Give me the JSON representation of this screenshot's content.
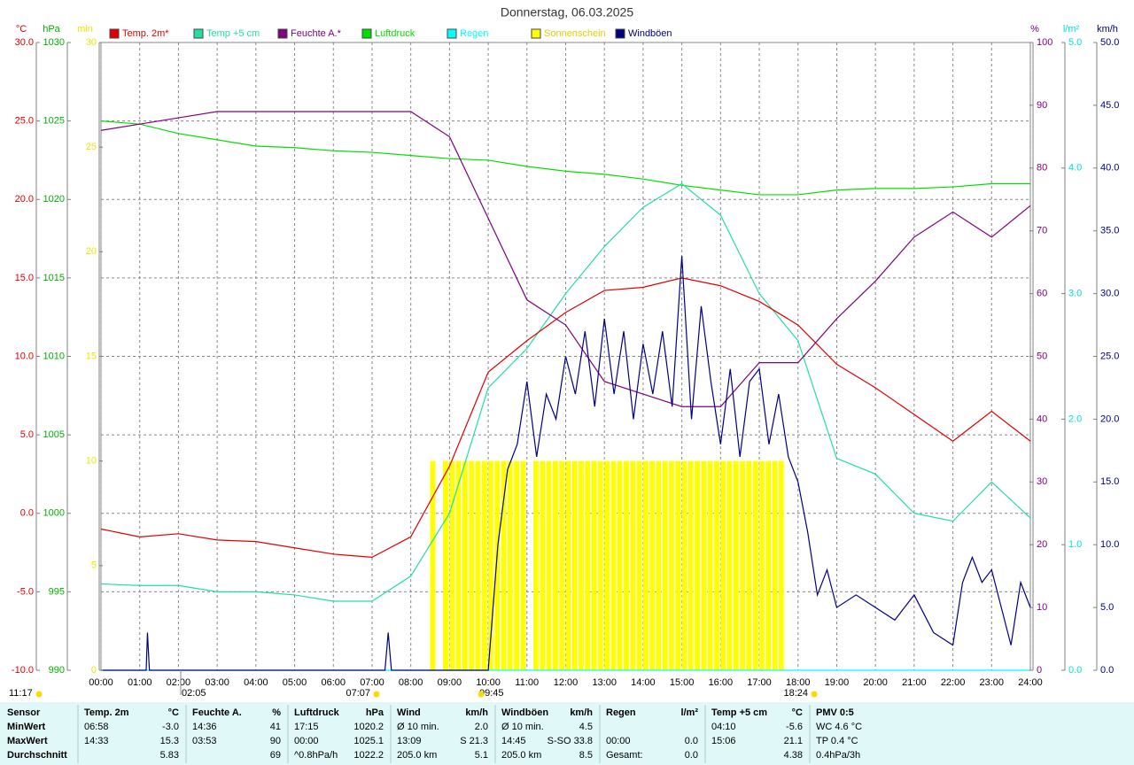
{
  "chart_data": {
    "type": "line",
    "title": "Donnerstag, 06.03.2025",
    "x": [
      "00:00",
      "01:00",
      "02:00",
      "03:00",
      "04:00",
      "05:00",
      "06:00",
      "07:00",
      "08:00",
      "09:00",
      "10:00",
      "11:00",
      "12:00",
      "13:00",
      "14:00",
      "15:00",
      "16:00",
      "17:00",
      "18:00",
      "19:00",
      "20:00",
      "21:00",
      "22:00",
      "23:00",
      "24:00"
    ],
    "axes": [
      {
        "id": "temp",
        "unit": "°C",
        "color": "#e00000",
        "ylim": [
          -10,
          30
        ],
        "yticks": [
          {
            "value": -10,
            "label": "-10.0"
          },
          {
            "value": -5,
            "label": "-5.0"
          },
          {
            "value": 0,
            "label": "0.0"
          },
          {
            "value": 5,
            "label": "5.0"
          },
          {
            "value": 10,
            "label": "10.0"
          },
          {
            "value": 15,
            "label": "15.0"
          },
          {
            "value": 20,
            "label": "20.0"
          },
          {
            "value": 25,
            "label": "25.0"
          },
          {
            "value": 30,
            "label": "30.0"
          }
        ],
        "grid": true
      },
      {
        "id": "hpa",
        "unit": "hPa",
        "color": "#00b000",
        "ylim": [
          990,
          1030
        ],
        "yticks": [
          990,
          995,
          1000,
          1005,
          1010,
          1015,
          1020,
          1025,
          1030
        ]
      },
      {
        "id": "min",
        "unit": "min",
        "color": "#e8e800",
        "ylim": [
          0,
          30
        ],
        "yticks": [
          0,
          5,
          10,
          15,
          20,
          25,
          30
        ]
      },
      {
        "id": "hum",
        "unit": "%",
        "color": "#800080",
        "ylim": [
          0,
          100
        ],
        "yticks": [
          0,
          10,
          20,
          30,
          40,
          50,
          60,
          70,
          80,
          90,
          100
        ]
      },
      {
        "id": "rain",
        "unit": "l/m²",
        "color": "#00e0e0",
        "ylim": [
          0,
          5
        ],
        "yticks": [
          {
            "value": 0,
            "label": "0.0"
          },
          {
            "value": 1,
            "label": "1.0"
          },
          {
            "value": 2,
            "label": "2.0"
          },
          {
            "value": 3,
            "label": "3.0"
          },
          {
            "value": 4,
            "label": "4.0"
          },
          {
            "value": 5,
            "label": "5.0"
          }
        ]
      },
      {
        "id": "kmh",
        "unit": "km/h",
        "color": "#000080",
        "ylim": [
          0,
          50
        ],
        "yticks": [
          {
            "value": 0,
            "label": "0.0"
          },
          {
            "value": 5,
            "label": "5.0"
          },
          {
            "value": 10,
            "label": "10.0"
          },
          {
            "value": 15,
            "label": "15.0"
          },
          {
            "value": 20,
            "label": "20.0"
          },
          {
            "value": 25,
            "label": "25.0"
          },
          {
            "value": 30,
            "label": "30.0"
          },
          {
            "value": 35,
            "label": "35.0"
          },
          {
            "value": 40,
            "label": "40.0"
          },
          {
            "value": 45,
            "label": "45.0"
          },
          {
            "value": 50,
            "label": "50.0"
          }
        ]
      }
    ],
    "series": [
      {
        "name": "Temp. 2m*",
        "color": "#e00000",
        "axis": "temp",
        "values": [
          -1.0,
          -1.5,
          -1.3,
          -1.7,
          -1.8,
          -2.2,
          -2.6,
          -2.8,
          -1.5,
          3.0,
          9.0,
          11.0,
          12.8,
          14.2,
          14.4,
          15.0,
          14.5,
          13.5,
          12.0,
          9.5,
          8.0,
          6.3,
          4.6,
          6.5,
          4.6
        ]
      },
      {
        "name": "Temp +5 cm",
        "color": "#20e0a0",
        "axis": "temp",
        "values": [
          -4.5,
          -4.6,
          -4.6,
          -5.0,
          -5.0,
          -5.2,
          -5.6,
          -5.6,
          -4.0,
          0.0,
          8.0,
          10.5,
          14.0,
          17.0,
          19.5,
          21.0,
          19.0,
          14.0,
          11.0,
          3.5,
          2.5,
          0.0,
          -0.5,
          2.0,
          -0.3
        ]
      },
      {
        "name": "Feuchte A.*",
        "color": "#800080",
        "axis": "hum",
        "values": [
          86,
          87,
          88,
          89,
          89,
          89,
          89,
          89,
          89,
          85,
          72,
          59,
          55,
          46,
          44,
          42,
          42,
          49,
          49,
          56,
          62,
          69,
          73,
          69,
          74
        ]
      },
      {
        "name": "Luftdruck",
        "color": "#00e000",
        "axis": "hpa",
        "values": [
          1025.0,
          1024.8,
          1024.2,
          1023.8,
          1023.4,
          1023.3,
          1023.1,
          1023.0,
          1022.8,
          1022.6,
          1022.5,
          1022.1,
          1021.8,
          1021.6,
          1021.3,
          1020.9,
          1020.6,
          1020.3,
          1020.3,
          1020.6,
          1020.7,
          1020.7,
          1020.8,
          1021.0,
          1021.0
        ]
      },
      {
        "name": "Regen",
        "color": "#00ffff",
        "axis": "rain",
        "x": [
          "00:00",
          "24:00"
        ],
        "values": [
          0,
          0
        ]
      },
      {
        "name": "Sonnenschein",
        "color": "#ffff00",
        "axis": "min",
        "kind": "bar",
        "x": [
          "08:30",
          "08:40",
          "08:50",
          "09:00",
          "09:10",
          "09:20",
          "09:30",
          "09:40",
          "09:50",
          "10:00",
          "10:10",
          "10:20",
          "10:30",
          "10:40",
          "10:50",
          "11:00",
          "11:10",
          "11:20",
          "11:30",
          "11:40",
          "11:50",
          "12:00",
          "12:10",
          "12:20",
          "12:30",
          "12:40",
          "12:50",
          "13:00",
          "13:10",
          "13:20",
          "13:30",
          "13:40",
          "13:50",
          "14:00",
          "14:10",
          "14:20",
          "14:30",
          "14:40",
          "14:50",
          "15:00",
          "15:10",
          "15:20",
          "15:30",
          "15:40",
          "15:50",
          "16:00",
          "16:10",
          "16:20",
          "16:30",
          "16:40",
          "16:50",
          "17:00",
          "17:10",
          "17:20",
          "17:30"
        ],
        "values": [
          10,
          0,
          10,
          10,
          10,
          10,
          10,
          10,
          10,
          10,
          10,
          10,
          10,
          10,
          10,
          0,
          10,
          10,
          10,
          10,
          10,
          10,
          10,
          10,
          10,
          10,
          10,
          10,
          10,
          10,
          10,
          10,
          10,
          10,
          10,
          10,
          10,
          10,
          10,
          10,
          10,
          10,
          10,
          10,
          10,
          10,
          10,
          10,
          10,
          10,
          10,
          10,
          10,
          10,
          10
        ]
      },
      {
        "name": "Windböen",
        "color": "#000080",
        "axis": "kmh",
        "x": [
          "00:00",
          "01:10",
          "01:12",
          "01:15",
          "07:20",
          "07:25",
          "07:30",
          "10:00",
          "10:15",
          "10:30",
          "10:45",
          "11:00",
          "11:15",
          "11:30",
          "11:45",
          "12:00",
          "12:15",
          "12:30",
          "12:45",
          "13:00",
          "13:15",
          "13:30",
          "13:45",
          "14:00",
          "14:15",
          "14:30",
          "14:45",
          "15:00",
          "15:15",
          "15:30",
          "15:45",
          "16:00",
          "16:15",
          "16:30",
          "16:45",
          "17:00",
          "17:15",
          "17:30",
          "17:45",
          "18:00",
          "18:15",
          "18:30",
          "18:45",
          "19:00",
          "19:30",
          "20:00",
          "20:30",
          "21:00",
          "21:30",
          "22:00",
          "22:15",
          "22:30",
          "22:45",
          "23:00",
          "23:15",
          "23:30",
          "23:45",
          "24:00"
        ],
        "values": [
          0,
          0,
          3,
          0,
          0,
          3,
          0,
          0,
          10,
          16,
          18,
          23,
          17,
          22,
          20,
          25,
          22,
          27,
          21,
          28,
          22,
          27,
          20,
          26,
          22,
          27,
          21,
          33,
          20,
          29,
          23,
          18,
          24,
          17,
          23,
          24,
          18,
          22,
          17,
          15,
          11,
          6,
          8,
          5,
          6,
          5,
          4,
          6,
          3,
          2,
          7,
          9,
          7,
          8,
          5,
          2,
          7,
          5
        ]
      }
    ],
    "annotations": [
      "11:17",
      "02:05",
      "07:07",
      "09:45",
      "18:24"
    ]
  },
  "table": {
    "header": [
      "Sensor",
      "Temp. 2m",
      "°C",
      "Feuchte A.",
      "%",
      "Luftdruck",
      "hPa",
      "Wind",
      "km/h",
      "Windböen",
      "km/h",
      "Regen",
      "l/m²",
      "Temp +5 cm",
      "°C",
      "PMV 0:5"
    ],
    "rows": [
      [
        "MinWert",
        "06:58",
        "-3.0",
        "14:36",
        "41",
        "17:15",
        "1020.2",
        "Ø 10 min.",
        "2.0",
        "Ø 10 min.",
        "4.5",
        null,
        null,
        "04:10",
        "-5.6",
        "WC 4.6 °C"
      ],
      [
        "MaxWert",
        "14:33",
        "15.3",
        "03:53",
        "90",
        "00:00",
        "1025.1",
        "13:09",
        "S 21.3",
        "14:45",
        "S-SO 33.8",
        "00:00",
        "0.0",
        "15:06",
        "21.1",
        "TP 0.4 °C"
      ],
      [
        "Durchschnitt",
        null,
        "5.83",
        null,
        "69",
        "^0.8hPa/h",
        "1022.2",
        "205.0 km",
        "5.1",
        "205.0 km",
        "8.5",
        "Gesamt:",
        "0.0",
        null,
        "4.38",
        "0.4hPa/3h"
      ]
    ]
  }
}
